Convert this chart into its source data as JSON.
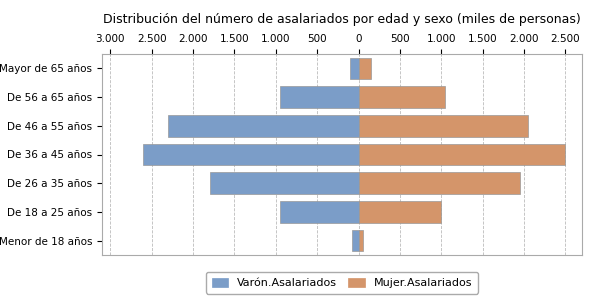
{
  "title": "Distribución del número de asalariados por edad y sexo (miles de personas)",
  "categories": [
    "Menor de 18 años",
    "De 18 a 25 años",
    "De 26 a 35 años",
    "De 36 a 45 años",
    "De 46 a 55 años",
    "De 56 a 65 años",
    "Mayor de 65 años"
  ],
  "varon": [
    80,
    950,
    1800,
    2600,
    2300,
    950,
    100
  ],
  "mujer": [
    50,
    1000,
    1950,
    2500,
    2050,
    1050,
    150
  ],
  "varon_color": "#7B9DC8",
  "mujer_color": "#D4956A",
  "xlim": [
    -3100,
    2700
  ],
  "xticks": [
    -3000,
    -2500,
    -2000,
    -1500,
    -1000,
    -500,
    0,
    500,
    1000,
    1500,
    2000,
    2500
  ],
  "xtick_labels": [
    "3.000",
    "2.500",
    "2.000",
    "1.500",
    "1.000",
    "500",
    "0",
    "500",
    "1.000",
    "1.500",
    "2.000",
    "2.500"
  ],
  "background_color": "#FFFFFF",
  "plot_bg_color": "#FFFFFF",
  "grid_color": "#BBBBBB",
  "title_fontsize": 9,
  "tick_fontsize": 7.5,
  "legend_labels": [
    "Varón.Asalariados",
    "Mujer.Asalariados"
  ],
  "bar_height": 0.75
}
